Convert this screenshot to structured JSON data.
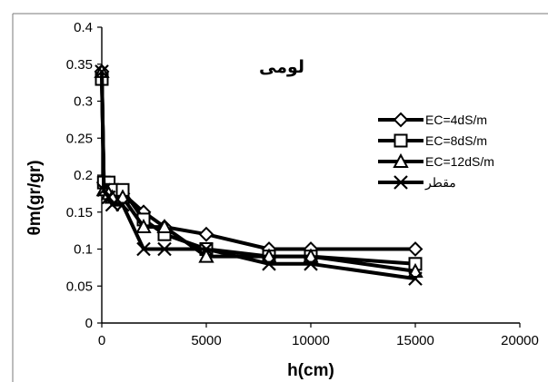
{
  "chart_data": {
    "type": "line",
    "title": "لومی",
    "xlabel": "h(cm)",
    "ylabel": "θm(gr/gr)",
    "xlim": [
      0,
      20000
    ],
    "ylim": [
      0,
      0.4
    ],
    "xticks": [
      "0",
      "5000",
      "10000",
      "15000",
      "20000"
    ],
    "yticks": [
      "0",
      "0.05",
      "0.1",
      "0.15",
      "0.2",
      "0.25",
      "0.3",
      "0.35",
      "0.4"
    ],
    "grid": false,
    "legend_position": "right",
    "series": [
      {
        "name": "EC=4dS/m",
        "marker": "diamond",
        "points": [
          [
            0,
            0.34
          ],
          [
            100,
            0.19
          ],
          [
            330,
            0.185
          ],
          [
            500,
            0.18
          ],
          [
            1000,
            0.175
          ],
          [
            2000,
            0.15
          ],
          [
            3000,
            0.13
          ],
          [
            5000,
            0.12
          ],
          [
            8000,
            0.1
          ],
          [
            10000,
            0.1
          ],
          [
            15000,
            0.1
          ]
        ]
      },
      {
        "name": "EC=8dS/m",
        "marker": "square",
        "points": [
          [
            0,
            0.33
          ],
          [
            100,
            0.19
          ],
          [
            330,
            0.19
          ],
          [
            500,
            0.18
          ],
          [
            1000,
            0.18
          ],
          [
            2000,
            0.14
          ],
          [
            3000,
            0.12
          ],
          [
            5000,
            0.1
          ],
          [
            8000,
            0.09
          ],
          [
            10000,
            0.09
          ],
          [
            15000,
            0.08
          ]
        ]
      },
      {
        "name": "EC=12dS/m",
        "marker": "triangle",
        "points": [
          [
            0,
            0.34
          ],
          [
            100,
            0.18
          ],
          [
            330,
            0.175
          ],
          [
            500,
            0.17
          ],
          [
            1000,
            0.17
          ],
          [
            2000,
            0.13
          ],
          [
            3000,
            0.13
          ],
          [
            5000,
            0.09
          ],
          [
            8000,
            0.09
          ],
          [
            10000,
            0.09
          ],
          [
            15000,
            0.07
          ]
        ]
      },
      {
        "name": "مقطر",
        "marker": "x",
        "points": [
          [
            0,
            0.34
          ],
          [
            100,
            0.18
          ],
          [
            330,
            0.17
          ],
          [
            500,
            0.16
          ],
          [
            1000,
            0.16
          ],
          [
            2000,
            0.1
          ],
          [
            3000,
            0.1
          ],
          [
            5000,
            0.1
          ],
          [
            8000,
            0.08
          ],
          [
            10000,
            0.08
          ],
          [
            15000,
            0.06
          ]
        ]
      }
    ]
  }
}
